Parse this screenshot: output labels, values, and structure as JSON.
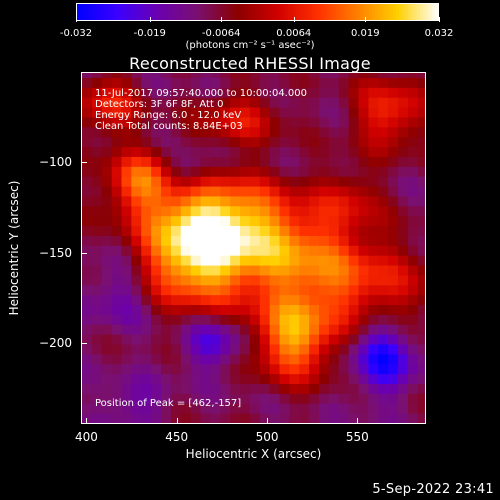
{
  "colorbar": {
    "ticks": [
      "-0.032",
      "-0.019",
      "-0.0064",
      "0.0064",
      "0.019",
      "0.032"
    ],
    "tick_values": [
      -0.032,
      -0.019,
      -0.0064,
      0.0064,
      0.019,
      0.032
    ],
    "range": [
      -0.032,
      0.032
    ],
    "unit": "(photons cm⁻² s⁻¹ asec⁻²)",
    "colors": [
      "#0000ff",
      "#3b00ff",
      "#6a00b0",
      "#7a1070",
      "#8b0000",
      "#d00000",
      "#ff3000",
      "#ff8000",
      "#ffd000",
      "#ffffff"
    ]
  },
  "chart_data": {
    "type": "heatmap",
    "title": "Reconstructed RHESSI Image",
    "xlabel": "Heliocentric X (arcsec)",
    "ylabel": "Heliocentric Y (arcsec)",
    "xlim": [
      397,
      588
    ],
    "ylim": [
      -245,
      -50
    ],
    "x_ticks": [
      "400",
      "450",
      "500",
      "550"
    ],
    "x_tick_values": [
      400,
      450,
      500,
      550
    ],
    "y_ticks": [
      "−100",
      "−150",
      "−200"
    ],
    "y_tick_values": [
      -100,
      -150,
      -200
    ],
    "grid": false,
    "pixel_size": 5.5,
    "peak": [
      462,
      -157
    ],
    "sources": [
      {
        "x": 458,
        "y": -152,
        "sx": 22,
        "sy": 20,
        "amp": 0.032
      },
      {
        "x": 475,
        "y": -128,
        "sx": 26,
        "sy": 16,
        "amp": 0.022
      },
      {
        "x": 510,
        "y": -148,
        "sx": 30,
        "sy": 18,
        "amp": 0.021
      },
      {
        "x": 515,
        "y": -198,
        "sx": 15,
        "sy": 16,
        "amp": 0.028
      },
      {
        "x": 548,
        "y": -170,
        "sx": 32,
        "sy": 17,
        "amp": 0.016
      },
      {
        "x": 430,
        "y": -110,
        "sx": 14,
        "sy": 12,
        "amp": 0.022
      },
      {
        "x": 412,
        "y": -68,
        "sx": 12,
        "sy": 12,
        "amp": 0.016
      },
      {
        "x": 568,
        "y": -72,
        "sx": 14,
        "sy": 14,
        "amp": 0.018
      },
      {
        "x": 485,
        "y": -75,
        "sx": 16,
        "sy": 10,
        "amp": 0.014
      },
      {
        "x": 545,
        "y": -120,
        "sx": 12,
        "sy": 12,
        "amp": 0.01
      },
      {
        "x": 470,
        "y": -200,
        "sx": 12,
        "sy": 10,
        "amp": -0.014
      },
      {
        "x": 455,
        "y": -105,
        "sx": 10,
        "sy": 8,
        "amp": -0.012
      },
      {
        "x": 565,
        "y": -208,
        "sx": 12,
        "sy": 14,
        "amp": -0.02
      },
      {
        "x": 420,
        "y": -170,
        "sx": 14,
        "sy": 16,
        "amp": -0.01
      },
      {
        "x": 425,
        "y": -235,
        "sx": 12,
        "sy": 10,
        "amp": -0.008
      }
    ],
    "background": -0.009
  },
  "annotations": {
    "time_range": "11-Jul-2017 09:57:40.000 to 10:00:04.000",
    "detectors": "Detectors: 3F 6F 8F, Att 0",
    "energy_range": "Energy Range: 6.0 - 12.0 keV",
    "clean_counts": "Clean     Total counts: 8.84E+03",
    "peak_position": "Position of Peak = [462,-157]"
  },
  "timestamp": "5-Sep-2022 23:41"
}
